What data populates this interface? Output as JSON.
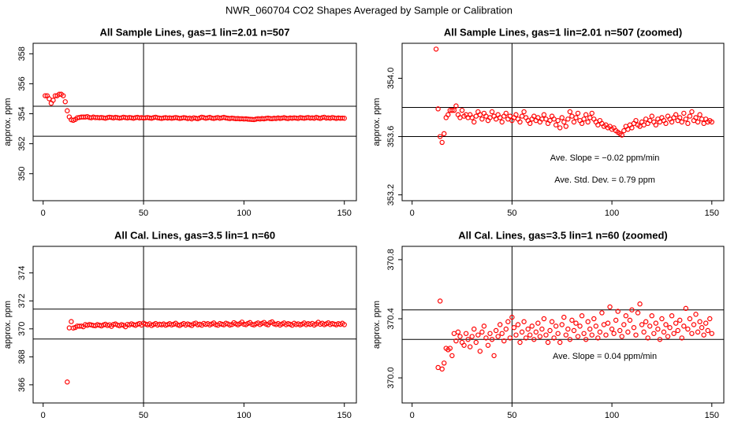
{
  "title": "NWR_060704  CO2 Shapes Averaged by Sample or Calibration",
  "chart_data": [
    {
      "type": "scatter",
      "title": "All Sample Lines, gas=1 lin=2.01 n=507",
      "y_label": "approx. ppm",
      "color": "#ff0000",
      "xlim": [
        -5,
        156
      ],
      "xticks": [
        0,
        50,
        100,
        150
      ],
      "ylim": [
        348.2,
        358.7
      ],
      "yticks": [
        350,
        352,
        354,
        356,
        358
      ],
      "hlines": [
        354.5,
        352.5
      ],
      "vlines": [
        50
      ],
      "x": [
        1,
        2,
        3,
        4,
        5,
        6,
        7,
        8,
        9,
        10,
        11,
        12,
        13,
        14,
        15,
        16,
        17,
        18,
        19,
        20,
        21,
        22,
        23,
        24,
        25,
        26,
        27,
        28,
        29,
        30,
        31,
        32,
        33,
        34,
        35,
        36,
        37,
        38,
        39,
        40,
        41,
        42,
        43,
        44,
        45,
        46,
        47,
        48,
        49,
        50,
        51,
        52,
        53,
        54,
        55,
        56,
        57,
        58,
        59,
        60,
        61,
        62,
        63,
        64,
        65,
        66,
        67,
        68,
        69,
        70,
        71,
        72,
        73,
        74,
        75,
        76,
        77,
        78,
        79,
        80,
        81,
        82,
        83,
        84,
        85,
        86,
        87,
        88,
        89,
        90,
        91,
        92,
        93,
        94,
        95,
        96,
        97,
        98,
        99,
        100,
        101,
        102,
        103,
        104,
        105,
        106,
        107,
        108,
        109,
        110,
        111,
        112,
        113,
        114,
        115,
        116,
        117,
        118,
        119,
        120,
        121,
        122,
        123,
        124,
        125,
        126,
        127,
        128,
        129,
        130,
        131,
        132,
        133,
        134,
        135,
        136,
        137,
        138,
        139,
        140,
        141,
        142,
        143,
        144,
        145,
        146,
        147,
        148,
        149,
        150
      ],
      "values": [
        355.2,
        355.2,
        355.0,
        354.7,
        354.9,
        355.2,
        355.2,
        355.3,
        355.3,
        355.2,
        354.8,
        354.2,
        353.79,
        353.6,
        353.56,
        353.62,
        353.73,
        353.75,
        353.78,
        353.78,
        353.78,
        353.81,
        353.75,
        353.73,
        353.78,
        353.74,
        353.75,
        353.73,
        353.75,
        353.73,
        353.7,
        353.74,
        353.77,
        353.75,
        353.72,
        353.76,
        353.74,
        353.71,
        353.73,
        353.77,
        353.74,
        353.72,
        353.75,
        353.73,
        353.7,
        353.74,
        353.76,
        353.72,
        353.74,
        353.71,
        353.73,
        353.75,
        353.72,
        353.7,
        353.74,
        353.77,
        353.73,
        353.71,
        353.69,
        353.72,
        353.74,
        353.71,
        353.73,
        353.7,
        353.72,
        353.75,
        353.72,
        353.69,
        353.71,
        353.74,
        353.72,
        353.68,
        353.71,
        353.66,
        353.73,
        353.7,
        353.67,
        353.72,
        353.77,
        353.74,
        353.7,
        353.73,
        353.76,
        353.71,
        353.69,
        353.72,
        353.75,
        353.7,
        353.73,
        353.76,
        353.72,
        353.7,
        353.68,
        353.71,
        353.69,
        353.67,
        353.68,
        353.66,
        353.67,
        353.65,
        353.66,
        353.64,
        353.63,
        353.62,
        353.61,
        353.64,
        353.67,
        353.65,
        353.68,
        353.66,
        353.69,
        353.71,
        353.68,
        353.67,
        353.7,
        353.68,
        353.72,
        353.69,
        353.71,
        353.74,
        353.7,
        353.68,
        353.72,
        353.7,
        353.73,
        353.71,
        353.69,
        353.74,
        353.72,
        353.7,
        353.73,
        353.75,
        353.71,
        353.73,
        353.7,
        353.76,
        353.72,
        353.69,
        353.74,
        353.77,
        353.71,
        353.73,
        353.7,
        353.75,
        353.72,
        353.69,
        353.72,
        353.7,
        353.71,
        353.7
      ]
    },
    {
      "type": "scatter",
      "title": "All Sample Lines, gas=1 lin=2.01 n=507 (zoomed)",
      "y_label": "approx. ppm",
      "color": "#ff0000",
      "xlim": [
        -5,
        156
      ],
      "xticks": [
        0,
        50,
        100,
        150
      ],
      "ylim": [
        353.16,
        354.24
      ],
      "yticks": [
        353.2,
        353.6,
        {
          "value": 354,
          "label": "354.0"
        }
      ],
      "hlines": [
        353.8,
        353.6
      ],
      "vlines": [
        50
      ],
      "annotations": [
        "Ave. Slope = −0.02  ppm/min",
        "Ave. Std. Dev. = 0.79  ppm"
      ],
      "x": [
        12,
        13,
        14,
        15,
        16,
        17,
        18,
        19,
        20,
        21,
        22,
        23,
        24,
        25,
        26,
        27,
        28,
        29,
        30,
        31,
        32,
        33,
        34,
        35,
        36,
        37,
        38,
        39,
        40,
        41,
        42,
        43,
        44,
        45,
        46,
        47,
        48,
        49,
        50,
        51,
        52,
        53,
        54,
        55,
        56,
        57,
        58,
        59,
        60,
        61,
        62,
        63,
        64,
        65,
        66,
        67,
        68,
        69,
        70,
        71,
        72,
        73,
        74,
        75,
        76,
        77,
        78,
        79,
        80,
        81,
        82,
        83,
        84,
        85,
        86,
        87,
        88,
        89,
        90,
        91,
        92,
        93,
        94,
        95,
        96,
        97,
        98,
        99,
        100,
        101,
        102,
        103,
        104,
        105,
        106,
        107,
        108,
        109,
        110,
        111,
        112,
        113,
        114,
        115,
        116,
        117,
        118,
        119,
        120,
        121,
        122,
        123,
        124,
        125,
        126,
        127,
        128,
        129,
        130,
        131,
        132,
        133,
        134,
        135,
        136,
        137,
        138,
        139,
        140,
        141,
        142,
        143,
        144,
        145,
        146,
        147,
        148,
        149,
        150
      ],
      "values": [
        354.2,
        353.79,
        353.6,
        353.56,
        353.62,
        353.73,
        353.75,
        353.78,
        353.78,
        353.78,
        353.81,
        353.75,
        353.73,
        353.78,
        353.74,
        353.75,
        353.73,
        353.75,
        353.73,
        353.7,
        353.74,
        353.77,
        353.75,
        353.72,
        353.76,
        353.74,
        353.71,
        353.73,
        353.77,
        353.74,
        353.72,
        353.75,
        353.73,
        353.7,
        353.74,
        353.76,
        353.72,
        353.74,
        353.71,
        353.73,
        353.75,
        353.72,
        353.7,
        353.74,
        353.77,
        353.73,
        353.71,
        353.69,
        353.72,
        353.74,
        353.71,
        353.73,
        353.7,
        353.72,
        353.75,
        353.72,
        353.69,
        353.71,
        353.74,
        353.72,
        353.68,
        353.71,
        353.66,
        353.73,
        353.7,
        353.67,
        353.72,
        353.77,
        353.74,
        353.7,
        353.73,
        353.76,
        353.71,
        353.69,
        353.72,
        353.75,
        353.7,
        353.73,
        353.76,
        353.72,
        353.7,
        353.68,
        353.71,
        353.69,
        353.67,
        353.68,
        353.66,
        353.67,
        353.65,
        353.66,
        353.64,
        353.63,
        353.62,
        353.61,
        353.64,
        353.67,
        353.65,
        353.68,
        353.66,
        353.69,
        353.71,
        353.68,
        353.67,
        353.7,
        353.68,
        353.72,
        353.69,
        353.71,
        353.74,
        353.7,
        353.68,
        353.72,
        353.7,
        353.73,
        353.71,
        353.69,
        353.74,
        353.72,
        353.7,
        353.73,
        353.75,
        353.71,
        353.73,
        353.7,
        353.76,
        353.72,
        353.69,
        353.74,
        353.77,
        353.71,
        353.73,
        353.7,
        353.75,
        353.72,
        353.69,
        353.72,
        353.7,
        353.71,
        353.7
      ]
    },
    {
      "type": "scatter",
      "title": "All Cal. Lines, gas=3.5 lin=1 n=60",
      "y_label": "approx. ppm",
      "color": "#ff0000",
      "xlim": [
        -5,
        156
      ],
      "xticks": [
        0,
        50,
        100,
        150
      ],
      "ylim": [
        364.7,
        375.9
      ],
      "yticks": [
        366,
        368,
        370,
        372,
        374
      ],
      "hlines": [
        371.41,
        369.27
      ],
      "vlines": [
        50
      ],
      "x": [
        12,
        13,
        14,
        15,
        16,
        17,
        18,
        19,
        20,
        21,
        22,
        23,
        24,
        25,
        26,
        27,
        28,
        29,
        30,
        31,
        32,
        33,
        34,
        35,
        36,
        37,
        38,
        39,
        40,
        41,
        42,
        43,
        44,
        45,
        46,
        47,
        48,
        49,
        50,
        51,
        52,
        53,
        54,
        55,
        56,
        57,
        58,
        59,
        60,
        61,
        62,
        63,
        64,
        65,
        66,
        67,
        68,
        69,
        70,
        71,
        72,
        73,
        74,
        75,
        76,
        77,
        78,
        79,
        80,
        81,
        82,
        83,
        84,
        85,
        86,
        87,
        88,
        89,
        90,
        91,
        92,
        93,
        94,
        95,
        96,
        97,
        98,
        99,
        100,
        101,
        102,
        103,
        104,
        105,
        106,
        107,
        108,
        109,
        110,
        111,
        112,
        113,
        114,
        115,
        116,
        117,
        118,
        119,
        120,
        121,
        122,
        123,
        124,
        125,
        126,
        127,
        128,
        129,
        130,
        131,
        132,
        133,
        134,
        135,
        136,
        137,
        138,
        139,
        140,
        141,
        142,
        143,
        144,
        145,
        146,
        147,
        148,
        149,
        150
      ],
      "values": [
        366.2,
        370.07,
        370.52,
        370.06,
        370.1,
        370.2,
        370.19,
        370.2,
        370.15,
        370.3,
        370.25,
        370.31,
        370.28,
        370.24,
        370.22,
        370.3,
        370.26,
        370.21,
        370.28,
        370.33,
        370.24,
        370.29,
        370.18,
        370.31,
        370.35,
        370.27,
        370.22,
        370.3,
        370.26,
        370.15,
        370.32,
        370.28,
        370.36,
        370.3,
        370.25,
        370.33,
        370.38,
        370.27,
        370.41,
        370.34,
        370.29,
        370.36,
        370.24,
        370.31,
        370.38,
        370.27,
        370.33,
        370.29,
        370.35,
        370.26,
        370.31,
        370.37,
        370.28,
        370.33,
        370.4,
        370.29,
        370.24,
        370.32,
        370.38,
        370.27,
        370.35,
        370.3,
        370.24,
        370.36,
        370.41,
        370.29,
        370.33,
        370.26,
        370.39,
        370.32,
        370.37,
        370.28,
        370.35,
        370.42,
        370.3,
        370.26,
        370.38,
        370.33,
        370.29,
        370.4,
        370.35,
        370.27,
        370.31,
        370.44,
        370.36,
        370.29,
        370.37,
        370.48,
        370.33,
        370.3,
        370.39,
        370.45,
        370.32,
        370.28,
        370.36,
        370.42,
        370.31,
        370.39,
        370.46,
        370.34,
        370.29,
        370.44,
        370.5,
        370.36,
        370.31,
        370.38,
        370.27,
        370.35,
        370.42,
        370.3,
        370.37,
        370.33,
        370.26,
        370.4,
        370.31,
        370.36,
        370.28,
        370.34,
        370.42,
        370.3,
        370.37,
        370.32,
        370.39,
        370.27,
        370.35,
        370.47,
        370.33,
        370.4,
        370.3,
        370.36,
        370.43,
        370.31,
        370.38,
        370.34,
        370.29,
        370.37,
        370.32,
        370.4,
        370.3
      ]
    },
    {
      "type": "scatter",
      "title": "All Cal. Lines, gas=3.5 lin=1 n=60 (zoomed)",
      "y_label": "approx. ppm",
      "color": "#ff0000",
      "xlim": [
        -5,
        156
      ],
      "xticks": [
        0,
        50,
        100,
        150
      ],
      "ylim": [
        369.83,
        370.89
      ],
      "yticks": [
        {
          "value": 370,
          "label": "370.0"
        },
        370.4,
        370.8
      ],
      "hlines": [
        370.46,
        370.26
      ],
      "vlines": [
        50
      ],
      "annotations": [
        "Ave. Slope =  0.04  ppm/min"
      ],
      "x": [
        13,
        14,
        15,
        16,
        17,
        18,
        19,
        20,
        21,
        22,
        23,
        24,
        25,
        26,
        27,
        28,
        29,
        30,
        31,
        32,
        33,
        34,
        35,
        36,
        37,
        38,
        39,
        40,
        41,
        42,
        43,
        44,
        45,
        46,
        47,
        48,
        49,
        50,
        51,
        52,
        53,
        54,
        55,
        56,
        57,
        58,
        59,
        60,
        61,
        62,
        63,
        64,
        65,
        66,
        67,
        68,
        69,
        70,
        71,
        72,
        73,
        74,
        75,
        76,
        77,
        78,
        79,
        80,
        81,
        82,
        83,
        84,
        85,
        86,
        87,
        88,
        89,
        90,
        91,
        92,
        93,
        94,
        95,
        96,
        97,
        98,
        99,
        100,
        101,
        102,
        103,
        104,
        105,
        106,
        107,
        108,
        109,
        110,
        111,
        112,
        113,
        114,
        115,
        116,
        117,
        118,
        119,
        120,
        121,
        122,
        123,
        124,
        125,
        126,
        127,
        128,
        129,
        130,
        131,
        132,
        133,
        134,
        135,
        136,
        137,
        138,
        139,
        140,
        141,
        142,
        143,
        144,
        145,
        146,
        147,
        148,
        149,
        150
      ],
      "values": [
        370.07,
        370.52,
        370.06,
        370.1,
        370.2,
        370.19,
        370.2,
        370.15,
        370.3,
        370.25,
        370.31,
        370.28,
        370.24,
        370.22,
        370.3,
        370.26,
        370.21,
        370.28,
        370.33,
        370.24,
        370.29,
        370.18,
        370.31,
        370.35,
        370.27,
        370.22,
        370.3,
        370.26,
        370.15,
        370.32,
        370.28,
        370.36,
        370.3,
        370.25,
        370.33,
        370.38,
        370.27,
        370.41,
        370.34,
        370.29,
        370.36,
        370.24,
        370.31,
        370.38,
        370.27,
        370.33,
        370.29,
        370.35,
        370.26,
        370.31,
        370.37,
        370.28,
        370.33,
        370.4,
        370.29,
        370.24,
        370.32,
        370.38,
        370.27,
        370.35,
        370.3,
        370.24,
        370.36,
        370.41,
        370.29,
        370.33,
        370.26,
        370.39,
        370.32,
        370.37,
        370.28,
        370.35,
        370.42,
        370.3,
        370.26,
        370.38,
        370.33,
        370.29,
        370.4,
        370.35,
        370.27,
        370.31,
        370.44,
        370.36,
        370.29,
        370.37,
        370.48,
        370.33,
        370.3,
        370.39,
        370.45,
        370.32,
        370.28,
        370.36,
        370.42,
        370.31,
        370.39,
        370.46,
        370.34,
        370.29,
        370.44,
        370.5,
        370.36,
        370.31,
        370.38,
        370.27,
        370.35,
        370.42,
        370.3,
        370.37,
        370.33,
        370.26,
        370.4,
        370.31,
        370.36,
        370.28,
        370.34,
        370.42,
        370.3,
        370.37,
        370.32,
        370.39,
        370.27,
        370.35,
        370.47,
        370.33,
        370.4,
        370.3,
        370.36,
        370.43,
        370.31,
        370.38,
        370.34,
        370.29,
        370.37,
        370.32,
        370.4,
        370.3
      ]
    }
  ]
}
